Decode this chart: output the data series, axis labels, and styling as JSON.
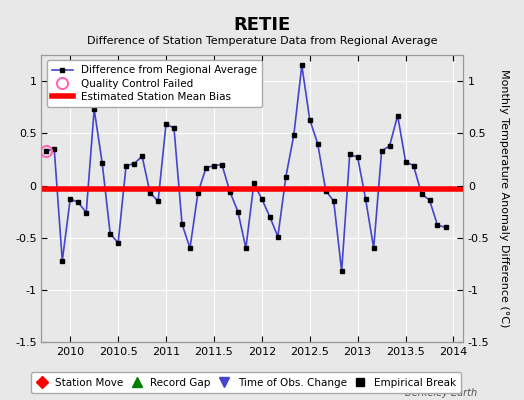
{
  "title": "RETIE",
  "subtitle": "Difference of Station Temperature Data from Regional Average",
  "ylabel": "Monthly Temperature Anomaly Difference (°C)",
  "watermark": "Berkeley Earth",
  "xlim": [
    2009.7,
    2014.1
  ],
  "ylim": [
    -1.5,
    1.25
  ],
  "yticks": [
    -1.5,
    -1.0,
    -0.5,
    0.0,
    0.5,
    1.0
  ],
  "xticks": [
    2010,
    2010.5,
    2011,
    2011.5,
    2012,
    2012.5,
    2013,
    2013.5,
    2014
  ],
  "mean_bias": -0.03,
  "background_color": "#e8e8e8",
  "line_color": "#4444cc",
  "marker_color": "#000000",
  "bias_color": "#ff0000",
  "qc_failed_x": [
    2009.75
  ],
  "qc_failed_y": [
    0.33
  ],
  "data_x": [
    2009.75,
    2009.833,
    2009.917,
    2010.0,
    2010.083,
    2010.167,
    2010.25,
    2010.333,
    2010.417,
    2010.5,
    2010.583,
    2010.667,
    2010.75,
    2010.833,
    2010.917,
    2011.0,
    2011.083,
    2011.167,
    2011.25,
    2011.333,
    2011.417,
    2011.5,
    2011.583,
    2011.667,
    2011.75,
    2011.833,
    2011.917,
    2012.0,
    2012.083,
    2012.167,
    2012.25,
    2012.333,
    2012.417,
    2012.5,
    2012.583,
    2012.667,
    2012.75,
    2012.833,
    2012.917,
    2013.0,
    2013.083,
    2013.167,
    2013.25,
    2013.333,
    2013.417,
    2013.5,
    2013.583,
    2013.667,
    2013.75,
    2013.833,
    2013.917
  ],
  "data_y": [
    0.33,
    0.35,
    -0.72,
    -0.13,
    -0.16,
    -0.26,
    0.73,
    0.22,
    -0.46,
    -0.55,
    0.19,
    0.21,
    0.28,
    -0.07,
    -0.15,
    0.59,
    0.55,
    -0.37,
    -0.6,
    -0.07,
    0.17,
    0.19,
    0.2,
    -0.06,
    -0.25,
    -0.6,
    0.02,
    -0.13,
    -0.3,
    -0.49,
    0.08,
    0.48,
    1.15,
    0.63,
    0.4,
    -0.05,
    -0.15,
    -0.82,
    0.3,
    0.27,
    -0.13,
    -0.6,
    0.33,
    0.38,
    0.67,
    0.23,
    0.19,
    -0.08,
    -0.14,
    -0.38,
    -0.4
  ],
  "legend_labels": [
    "Difference from Regional Average",
    "Quality Control Failed",
    "Estimated Station Mean Bias"
  ],
  "bottom_legend_labels": [
    "Station Move",
    "Record Gap",
    "Time of Obs. Change",
    "Empirical Break"
  ]
}
